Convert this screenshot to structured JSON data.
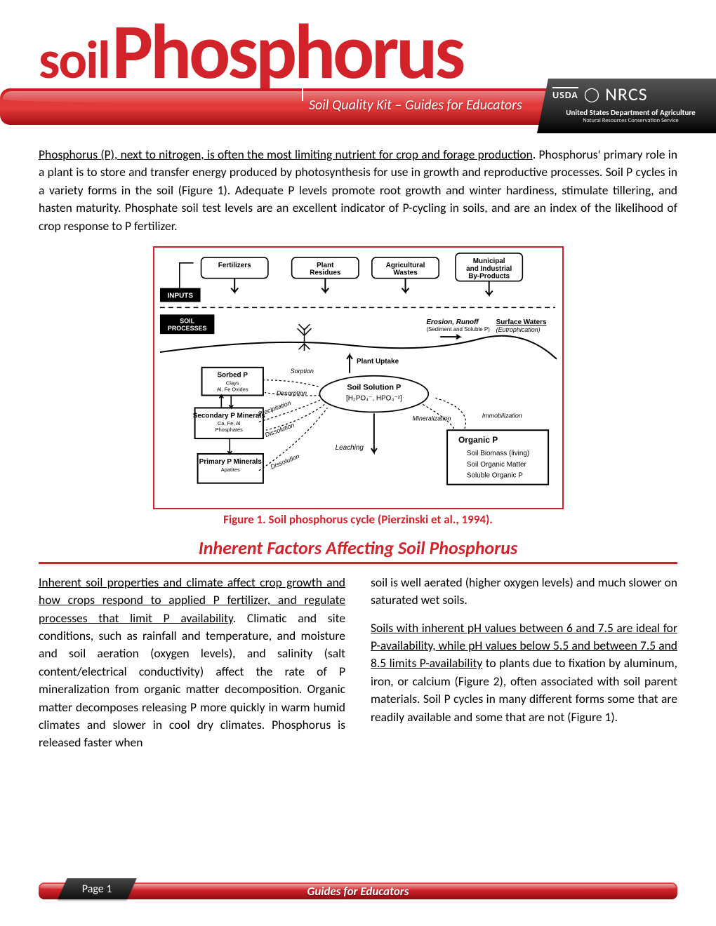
{
  "header": {
    "title_prefix": "soil",
    "title_main": "Phosphorus",
    "subtitle": "Soil Quality Kit – Guides for Educators",
    "agency": {
      "usda": "USDA",
      "nrcs": "NRCS",
      "dept": "United States Department of Agriculture",
      "service": "Natural Resources Conservation Service"
    },
    "colors": {
      "brand_red": "#d2232a",
      "bar_gradient_top": "#e03a3a",
      "bar_gradient_bottom": "#a50e14",
      "agency_bg": "#2a2a2a"
    }
  },
  "intro": {
    "lead": "Phosphorus (P), next to nitrogen, is often the most limiting nutrient for crop and forage production",
    "rest": ". Phosphorus' primary role in a plant is to store and transfer energy produced by photosynthesis for use in growth and reproductive processes. Soil P cycles in a variety forms in the soil (Figure 1). Adequate P levels promote root growth and winter hardiness, stimulate tillering, and hasten maturity. Phosphate soil test levels are an excellent indicator of P-cycling in soils, and are an index of the likelihood of crop response to P fertilizer."
  },
  "figure1": {
    "caption": "Figure 1. Soil phosphorus cycle (Pierzinski et al., 1994).",
    "border_color": "#d2232a",
    "labels": {
      "inputs_tag": "INPUTS",
      "processes_tag": "SOIL\nPROCESSES",
      "inputs": [
        "Fertilizers",
        "Plant\nResidues",
        "Agricultural\nWastes",
        "Municipal\nand Industrial\nBy-Products"
      ],
      "erosion": "Erosion, Runoff",
      "erosion_sub": "(Sediment and Soluble P)",
      "surface_waters": "Surface Waters",
      "surface_waters_sub": "(Eutrophication)",
      "plant_uptake": "Plant Uptake",
      "soil_solution": "Soil Solution P",
      "soil_solution_formula": "[H₂PO₄⁻, HPO₄⁻²]",
      "sorbed": "Sorbed P",
      "sorbed_sub": "Clays\nAl, Fe Oxides",
      "secondary": "Secondary P\nMinerals",
      "secondary_sub": "Ca, Fe, Al\nPhosphates",
      "primary": "Primary P\nMinerals",
      "primary_sub": "Apatites",
      "organic": "Organic P",
      "organic_items": [
        "Soil Biomass (living)",
        "Soil Organic Matter",
        "Soluble Organic P"
      ],
      "sorption": "Sorption",
      "desorption": "Desorption",
      "precipitation": "Precipitation",
      "dissolution": "Dissolution",
      "mineralization": "Mineralization",
      "immobilization": "Immobilization",
      "leaching": "Leaching"
    }
  },
  "section": {
    "heading": "Inherent Factors Affecting Soil Phosphorus"
  },
  "columns": {
    "left": {
      "u1": "Inherent soil properties and climate affect crop growth and how crops respond to applied P fertilizer, and regulate processes that limit P availability",
      "p1": ". Climatic and site conditions, such as rainfall and temperature, and moisture and soil aeration (oxygen levels), and salinity (salt content/electrical conductivity) affect the rate of P mineralization from organic matter decomposition. Organic matter decomposes releasing P more quickly in warm humid climates and slower in cool dry climates. Phosphorus is released faster when"
    },
    "right": {
      "p1": "soil is well aerated (higher oxygen levels) and much slower on saturated wet soils.",
      "u2": "Soils with inherent pH values between 6 and 7.5 are ideal for P-availability, while pH values below 5.5 and between 7.5 and 8.5 limits P-availability",
      "p2": " to plants due to fixation by aluminum, iron, or calcium (Figure 2), often associated with soil parent materials. Soil P cycles in many different forms some that are readily available and some that are not (Figure 1)."
    }
  },
  "footer": {
    "page": "Page 1",
    "title": "Guides for Educators"
  }
}
